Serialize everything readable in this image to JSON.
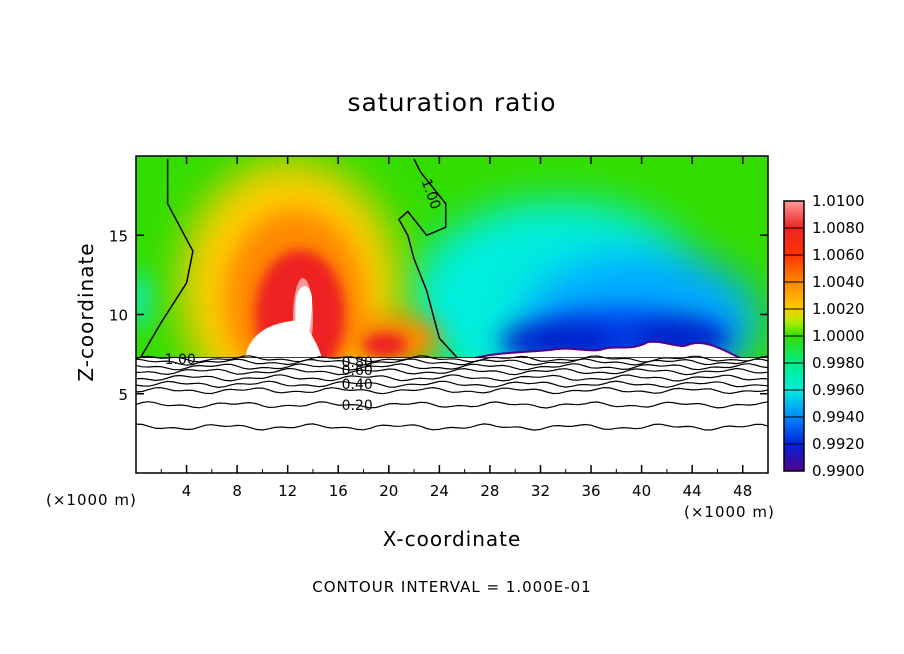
{
  "chart_data": {
    "type": "heatmap",
    "title": "saturation ratio",
    "xlabel": "X-coordinate",
    "ylabel": "Z-coordinate",
    "x_unit_label": "(×1000 m)",
    "footer": "CONTOUR INTERVAL = 1.000E-01",
    "xlim": [
      0,
      50
    ],
    "ylim": [
      0,
      20
    ],
    "x_ticks": [
      "4",
      "8",
      "12",
      "16",
      "20",
      "24",
      "28",
      "32",
      "36",
      "40",
      "44",
      "48"
    ],
    "y_ticks": [
      "5",
      "10",
      "15"
    ],
    "colorbar": {
      "labels": [
        "1.0100",
        "1.0080",
        "1.0060",
        "1.0040",
        "1.0020",
        "1.0000",
        "0.9980",
        "0.9960",
        "0.9940",
        "0.9920",
        "0.9900"
      ],
      "range": [
        0.99,
        1.01
      ]
    },
    "contour_labels": [
      {
        "text": "1.00",
        "x": 3.5,
        "z": 7.2
      },
      {
        "text": "1.00",
        "x": 23.0,
        "z": 17.5
      },
      {
        "text": "0.80",
        "x": 17.5,
        "z": 7.0
      },
      {
        "text": "0.60",
        "x": 17.5,
        "z": 6.5
      },
      {
        "text": "0.40",
        "x": 17.5,
        "z": 5.6
      },
      {
        "text": "0.20",
        "x": 17.5,
        "z": 4.3
      }
    ],
    "contour_1_00_left_line": [
      [
        0.3,
        7.2
      ],
      [
        2.0,
        9.5
      ],
      [
        4.0,
        12.0
      ],
      [
        4.5,
        14.0
      ],
      [
        3.5,
        15.5
      ],
      [
        2.5,
        17.0
      ],
      [
        2.5,
        19.8
      ]
    ],
    "contour_1_00_right_line": [
      [
        25.5,
        7.2
      ],
      [
        24.0,
        8.5
      ],
      [
        23.5,
        10.0
      ],
      [
        23.0,
        11.5
      ],
      [
        22.5,
        12.5
      ],
      [
        22.0,
        13.5
      ],
      [
        21.5,
        15.0
      ],
      [
        20.8,
        16.0
      ],
      [
        21.5,
        16.5
      ],
      [
        23.0,
        15.0
      ],
      [
        24.5,
        15.5
      ],
      [
        24.5,
        17.0
      ],
      [
        22.5,
        19.0
      ],
      [
        22.0,
        19.8
      ]
    ],
    "dry_isolines": [
      {
        "z": 7.2,
        "value": 1.0
      },
      {
        "z": 7.0,
        "value": 0.9
      },
      {
        "z": 6.7,
        "value": 0.8
      },
      {
        "z": 6.4,
        "value": 0.7
      },
      {
        "z": 6.0,
        "value": 0.6
      },
      {
        "z": 5.6,
        "value": 0.5
      },
      {
        "z": 5.2,
        "value": 0.4
      },
      {
        "z": 4.3,
        "value": 0.2
      },
      {
        "z": 2.9,
        "value": 0.1
      }
    ],
    "features": [
      {
        "kind": "supersaturated-plume",
        "center_x": 13.0,
        "top_z": 16.5,
        "base_z": 7.2,
        "max_value": 1.01
      },
      {
        "kind": "subsaturated-region",
        "from_x": 27.0,
        "to_x": 48.0,
        "min_value": 0.99
      },
      {
        "kind": "cloud-base",
        "z": 7.2
      }
    ]
  }
}
